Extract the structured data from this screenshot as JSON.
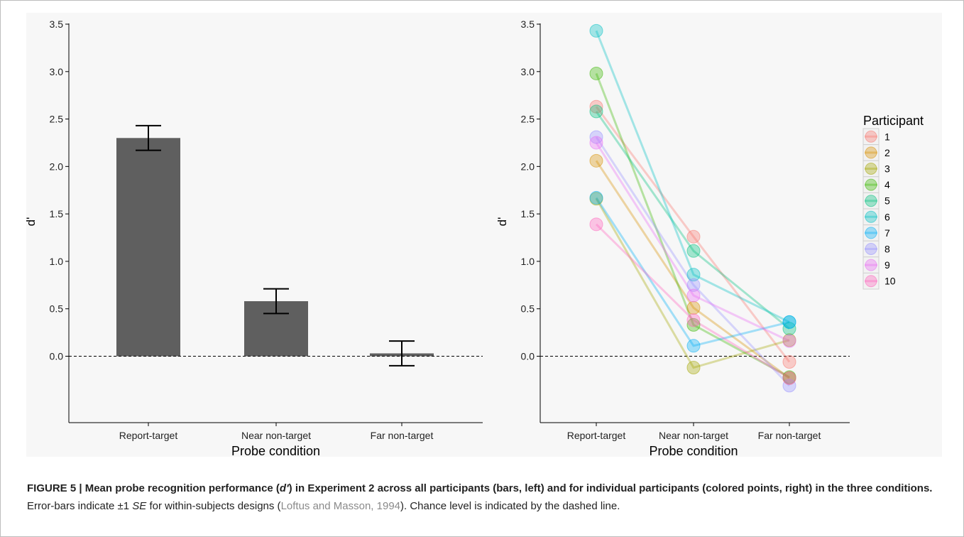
{
  "chart_data": [
    {
      "type": "bar",
      "categories": [
        "Report-target",
        "Near non-target",
        "Far non-target"
      ],
      "values": [
        2.3,
        0.58,
        0.03
      ],
      "error": [
        0.13,
        0.13,
        0.13
      ],
      "xlabel": "Probe condition",
      "ylabel": "d'",
      "ylim": [
        -0.7,
        3.5
      ],
      "yticks": [
        "0.0",
        "0.5",
        "1.0",
        "1.5",
        "2.0",
        "2.5",
        "3.0",
        "3.5"
      ],
      "reference_line": 0,
      "bar_color": "#5f5f5f",
      "grid": false
    },
    {
      "type": "line",
      "categories": [
        "Report-target",
        "Near non-target",
        "Far non-target"
      ],
      "xlabel": "Probe condition",
      "ylabel": "d'",
      "ylim": [
        -0.7,
        3.5
      ],
      "yticks": [
        "0.0",
        "0.5",
        "1.0",
        "1.5",
        "2.0",
        "2.5",
        "3.0",
        "3.5"
      ],
      "reference_line": 0,
      "legend_title": "Participant",
      "legend_position": "right",
      "series": [
        {
          "name": "1",
          "color": "#F8766D",
          "values": [
            2.63,
            1.26,
            -0.06
          ]
        },
        {
          "name": "2",
          "color": "#D89000",
          "values": [
            2.06,
            0.51,
            -0.23
          ]
        },
        {
          "name": "3",
          "color": "#A3A500",
          "values": [
            1.66,
            -0.12,
            0.17
          ]
        },
        {
          "name": "4",
          "color": "#39B600",
          "values": [
            2.98,
            0.33,
            -0.22
          ]
        },
        {
          "name": "5",
          "color": "#00BF7D",
          "values": [
            2.58,
            1.11,
            0.29
          ]
        },
        {
          "name": "6",
          "color": "#00BFC4",
          "values": [
            3.43,
            0.86,
            0.36
          ]
        },
        {
          "name": "7",
          "color": "#00B0F6",
          "values": [
            1.67,
            0.11,
            0.36
          ]
        },
        {
          "name": "8",
          "color": "#9590FF",
          "values": [
            2.31,
            0.75,
            -0.31
          ]
        },
        {
          "name": "9",
          "color": "#E76BF3",
          "values": [
            2.25,
            0.64,
            0.16
          ]
        },
        {
          "name": "10",
          "color": "#FF62BC",
          "values": [
            1.39,
            0.38,
            -0.23
          ]
        }
      ]
    }
  ],
  "caption": {
    "label": "FIGURE 5 | Mean probe recognition performance (",
    "label_italic": "d'",
    "label_rest": ") in Experiment 2 across all participants (bars, left) and for individual participants (colored points, right) in the three conditions.",
    "body_1": " Error-bars indicate ±1 ",
    "body_italic": "SE",
    "body_2": " for within-subjects designs (",
    "reference": "Loftus and Masson, 1994",
    "body_3": "). Chance level is indicated by the dashed line."
  }
}
